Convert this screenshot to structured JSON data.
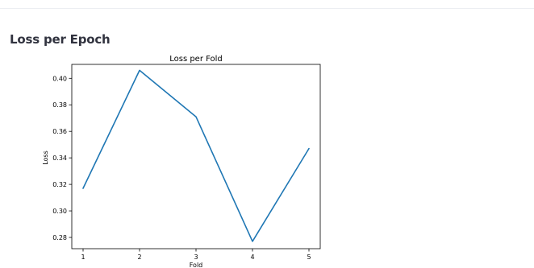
{
  "section": {
    "title": "Loss per Epoch"
  },
  "chart_data": {
    "type": "line",
    "title": "Loss per Fold",
    "xlabel": "Fold",
    "ylabel": "Loss",
    "x": [
      1,
      2,
      3,
      4,
      5
    ],
    "xticks": [
      "1",
      "2",
      "3",
      "4",
      "5"
    ],
    "yticks": [
      "0.28",
      "0.30",
      "0.32",
      "0.34",
      "0.36",
      "0.38",
      "0.40"
    ],
    "yticks_values": [
      0.28,
      0.3,
      0.32,
      0.34,
      0.36,
      0.38,
      0.4
    ],
    "xlim": [
      0.8,
      5.2
    ],
    "ylim": [
      0.2715,
      0.4105
    ],
    "grid": false,
    "series": [
      {
        "values": [
          0.317,
          0.406,
          0.371,
          0.277,
          0.347
        ],
        "color": "#1f77b4"
      }
    ]
  }
}
